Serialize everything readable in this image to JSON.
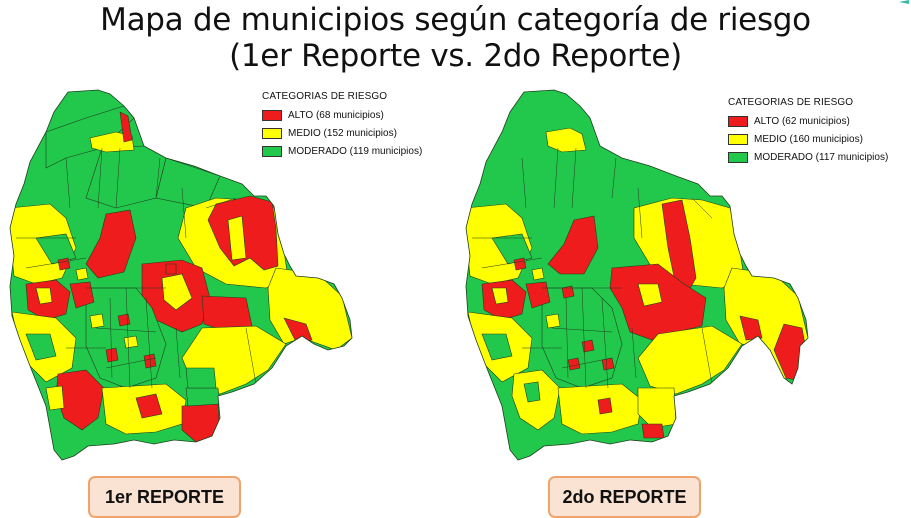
{
  "title": {
    "line1": "Mapa de municipios según categoría de riesgo",
    "line2": "(1er Reporte vs. 2do Reporte)"
  },
  "colors": {
    "alto": "#ee1c1c",
    "medio": "#ffff00",
    "moderado": "#22c84b",
    "border": "#1f3f1f"
  },
  "maps": [
    {
      "legend": {
        "title": "CATEGORIAS DE RIESGO",
        "items": [
          {
            "label": "ALTO (68 municipios)",
            "color": "#ee1c1c",
            "category": "alto",
            "count": 68
          },
          {
            "label": "MEDIO (152 municipios)",
            "color": "#ffff00",
            "category": "medio",
            "count": 152
          },
          {
            "label": "MODERADO (119 municipios)",
            "color": "#22c84b",
            "category": "moderado",
            "count": 119
          }
        ]
      },
      "report_label": "1er REPORTE"
    },
    {
      "legend": {
        "title": "CATEGORIAS DE RIESGO",
        "items": [
          {
            "label": "ALTO (62 municipios)",
            "color": "#ee1c1c",
            "category": "alto",
            "count": 62
          },
          {
            "label": "MEDIO (160 municipios)",
            "color": "#ffff00",
            "category": "medio",
            "count": 160
          },
          {
            "label": "MODERADO (117 municipios)",
            "color": "#22c84b",
            "category": "moderado",
            "count": 117
          }
        ]
      },
      "report_label": "2do REPORTE"
    }
  ],
  "icons": {
    "corner": "corner-mark-icon"
  }
}
